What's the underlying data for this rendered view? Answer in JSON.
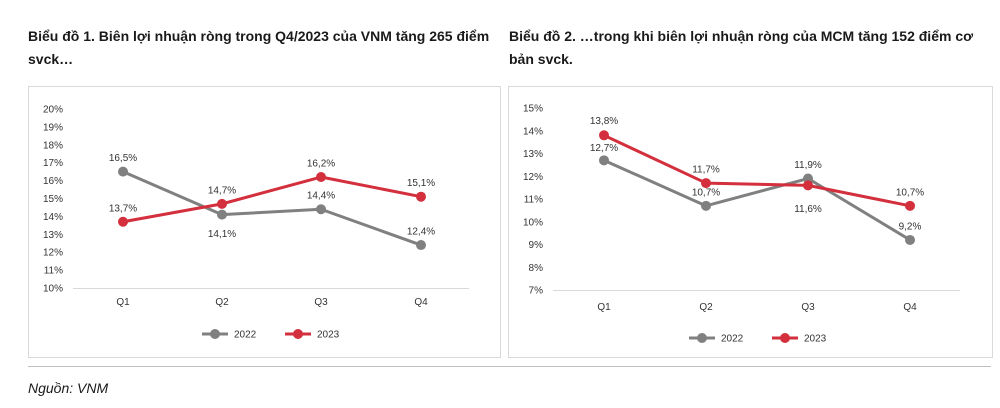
{
  "titles": {
    "chart1": "Biểu đồ 1. Biên lợi nhuận ròng trong Q4/2023 của VNM tăng 265 điểm svck…",
    "chart2": "Biểu đồ 2. …trong khi biên lợi nhuận ròng của MCM tăng 152 điểm cơ bản svck."
  },
  "source": "Nguồn: VNM",
  "colors": {
    "2022": "#808080",
    "2023": "#d32f3c"
  },
  "chart_data": [
    {
      "type": "line",
      "title": "Biểu đồ 1. Biên lợi nhuận ròng trong Q4/2023 của VNM tăng 265 điểm svck…",
      "categories": [
        "Q1",
        "Q2",
        "Q3",
        "Q4"
      ],
      "ylim": [
        10,
        20
      ],
      "yticks": [
        "10%",
        "11%",
        "12%",
        "13%",
        "14%",
        "15%",
        "16%",
        "17%",
        "18%",
        "19%",
        "20%"
      ],
      "series": [
        {
          "name": "2022",
          "values": [
            16.5,
            14.1,
            14.4,
            12.4
          ],
          "labels": [
            "16,5%",
            "14,1%",
            "14,4%",
            "12,4%"
          ]
        },
        {
          "name": "2023",
          "values": [
            13.7,
            14.7,
            16.2,
            15.1
          ],
          "labels": [
            "13,7%",
            "14,7%",
            "16,2%",
            "15,1%"
          ]
        }
      ],
      "legend": "bottom",
      "grid": false
    },
    {
      "type": "line",
      "title": "Biểu đồ 2. …trong khi biên lợi nhuận ròng của MCM tăng 152 điểm cơ bản svck.",
      "categories": [
        "Q1",
        "Q2",
        "Q3",
        "Q4"
      ],
      "ylim": [
        7,
        15
      ],
      "yticks": [
        "7%",
        "8%",
        "9%",
        "10%",
        "11%",
        "12%",
        "13%",
        "14%",
        "15%"
      ],
      "series": [
        {
          "name": "2022",
          "values": [
            12.7,
            10.7,
            11.9,
            9.2
          ],
          "labels": [
            "12,7%",
            "10,7%",
            "11,9%",
            "9,2%"
          ]
        },
        {
          "name": "2023",
          "values": [
            13.8,
            11.7,
            11.6,
            10.7
          ],
          "labels": [
            "13,8%",
            "11,7%",
            "11,6%",
            "10,7%"
          ]
        }
      ],
      "legend": "bottom",
      "grid": false
    }
  ]
}
